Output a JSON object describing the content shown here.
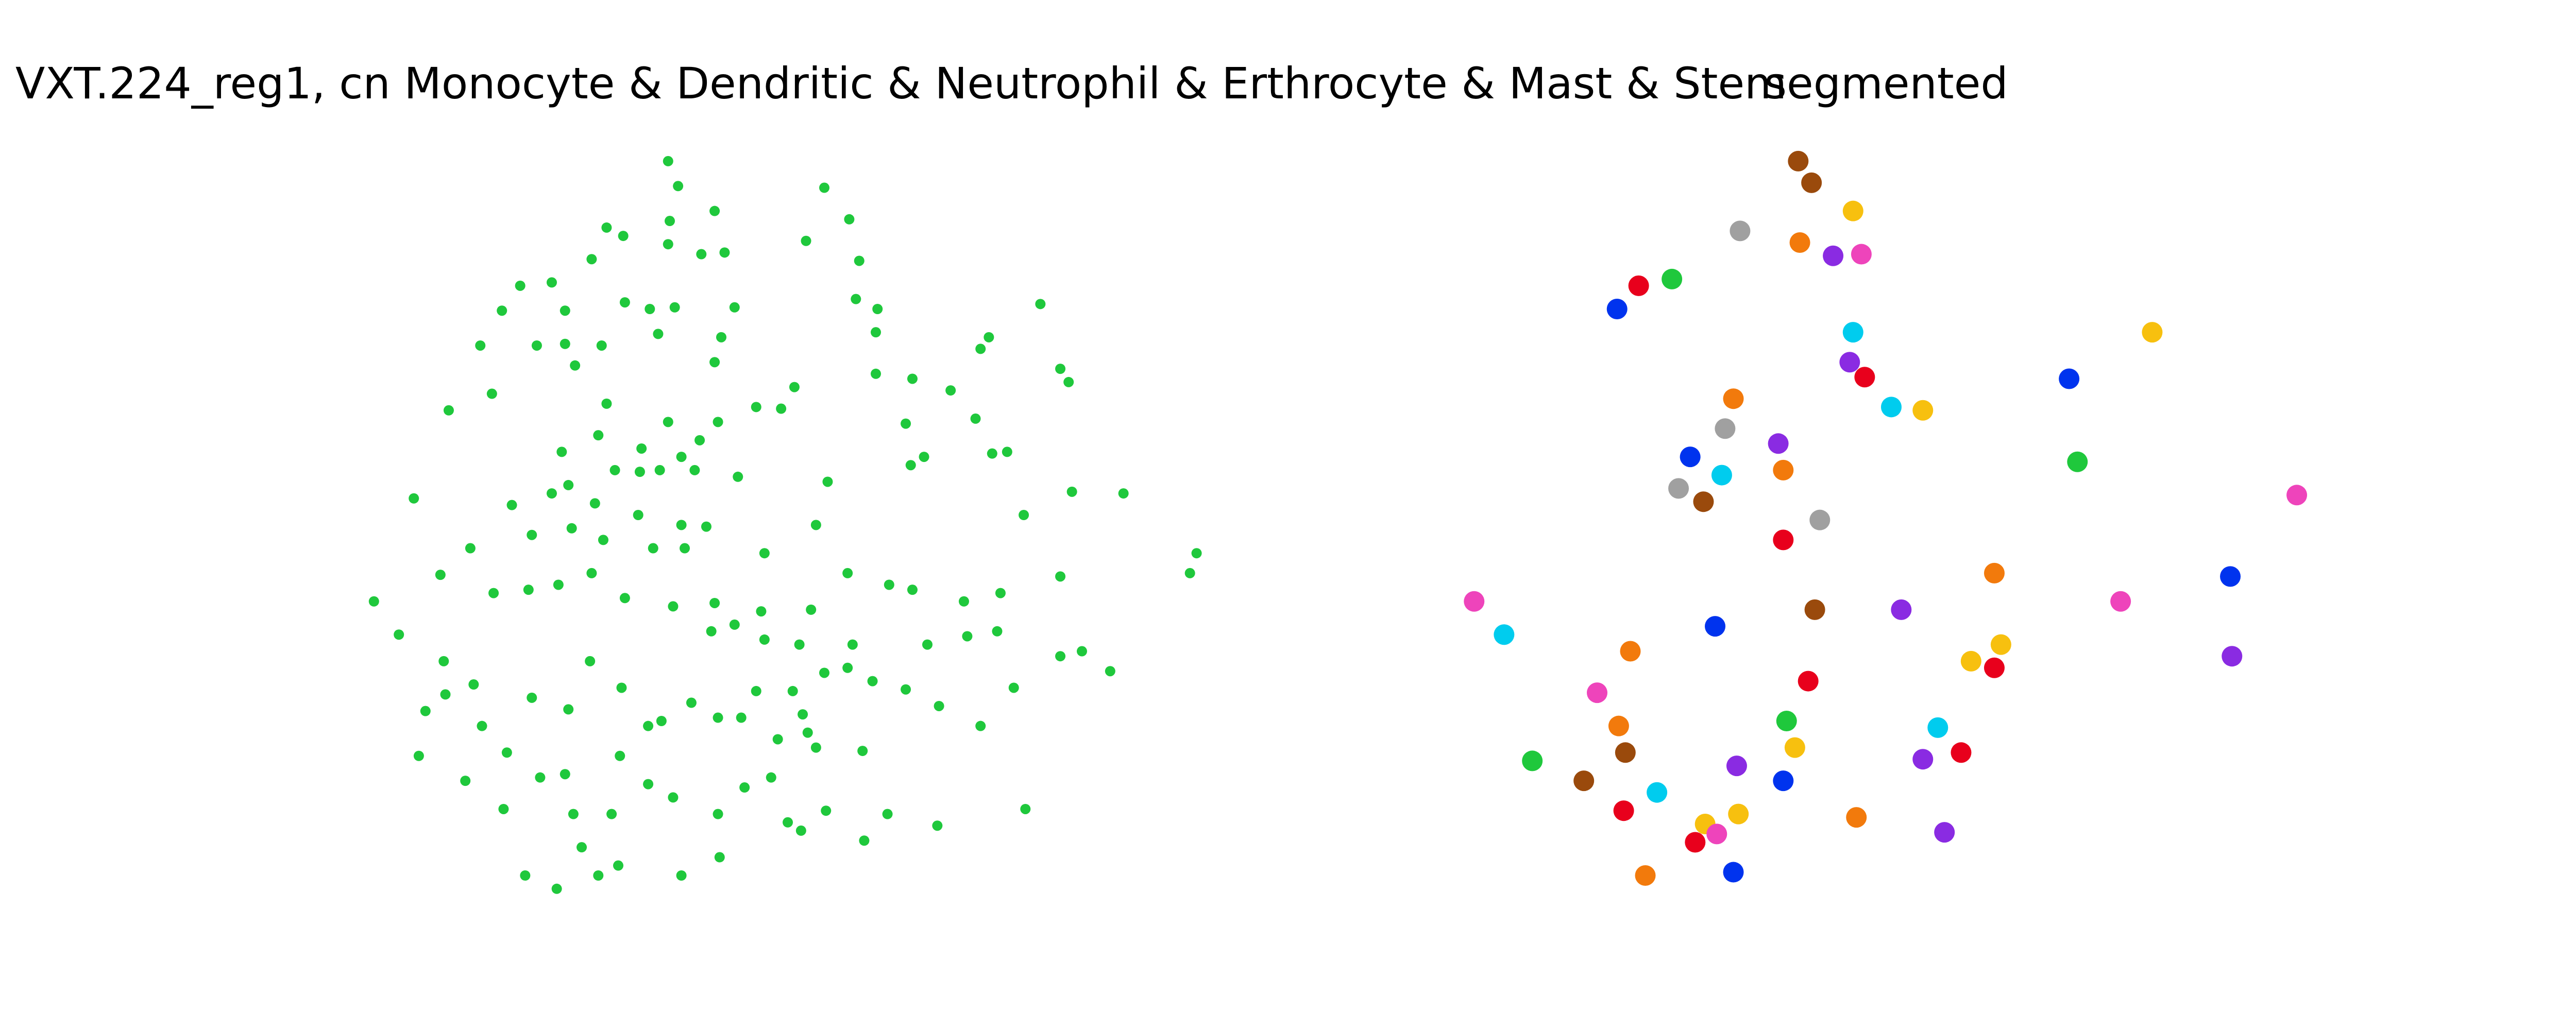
{
  "chart_data": [
    {
      "type": "scatter",
      "title": "VXT.224_reg1, cn Monocyte & Dendritic & Neutrophil & Erthrocyte & Mast & Stem",
      "xlim": [
        200,
        740
      ],
      "ylim": [
        560,
        80
      ],
      "series": [
        {
          "color": "#1fc83c",
          "x": [
            402,
            408,
            496,
            365,
            375,
            403,
            430,
            511,
            356,
            402,
            422,
            436,
            485,
            517,
            313,
            332,
            340,
            302,
            289,
            296,
            323,
            340,
            346,
            362,
            376,
            391,
            406,
            396,
            434,
            430,
            442,
            515,
            528,
            527,
            595,
            590,
            626,
            638,
            643,
            549,
            572,
            527,
            478,
            470,
            455,
            432,
            421,
            402,
            386,
            365,
            360,
            338,
            342,
            332,
            370,
            385,
            397,
            410,
            418,
            444,
            498,
            545,
            548,
            556,
            587,
            597,
            606,
            616,
            645,
            676,
            720,
            716,
            249,
            270,
            265,
            283,
            308,
            320,
            344,
            358,
            363,
            384,
            410,
            412,
            425,
            393,
            460,
            491,
            510,
            535,
            549,
            580,
            602,
            638,
            225,
            240,
            267,
            297,
            318,
            336,
            356,
            376,
            405,
            430,
            428,
            442,
            458,
            460,
            488,
            513,
            510,
            496,
            481,
            525,
            545,
            558,
            582,
            600,
            638,
            651,
            668,
            610,
            590,
            565,
            256,
            252,
            268,
            285,
            290,
            305,
            320,
            342,
            355,
            374,
            390,
            398,
            416,
            432,
            446,
            455,
            468,
            486,
            491,
            519,
            483,
            477,
            280,
            303,
            325,
            340,
            345,
            368,
            373,
            390,
            405,
            432,
            448,
            464,
            482,
            497,
            520,
            534,
            564,
            617,
            316,
            335,
            360,
            372,
            350,
            410,
            433,
            474
          ],
          "y": [
            97,
            112,
            113,
            137,
            142,
            133,
            127,
            132,
            156,
            147,
            153,
            152,
            145,
            157,
            172,
            170,
            187,
            187,
            208,
            237,
            208,
            207,
            220,
            208,
            182,
            186,
            185,
            201,
            203,
            218,
            185,
            180,
            186,
            200,
            203,
            210,
            183,
            222,
            230,
            228,
            235,
            225,
            233,
            246,
            245,
            254,
            265,
            254,
            270,
            243,
            262,
            272,
            292,
            297,
            283,
            284,
            283,
            275,
            283,
            287,
            290,
            255,
            280,
            275,
            252,
            273,
            272,
            310,
            296,
            297,
            333,
            345,
            300,
            247,
            346,
            330,
            304,
            322,
            318,
            303,
            325,
            310,
            316,
            330,
            317,
            330,
            333,
            316,
            345,
            352,
            355,
            362,
            357,
            347,
            362,
            382,
            398,
            357,
            355,
            352,
            345,
            360,
            365,
            363,
            380,
            376,
            368,
            385,
            367,
            388,
            402,
            405,
            388,
            410,
            415,
            388,
            383,
            380,
            395,
            392,
            404,
            414,
            437,
            425,
            428,
            455,
            418,
            412,
            437,
            453,
            420,
            427,
            398,
            414,
            437,
            434,
            423,
            432,
            432,
            416,
            445,
            441,
            450,
            452,
            430,
            416,
            470,
            487,
            468,
            466,
            490,
            490,
            455,
            472,
            480,
            490,
            474,
            468,
            500,
            488,
            506,
            490,
            497,
            487,
            527,
            535,
            527,
            521,
            510,
            527,
            516,
            495
          ]
        }
      ]
    },
    {
      "type": "scatter",
      "title": "segmented",
      "xlim": [
        865,
        1405
      ],
      "ylim": [
        560,
        80
      ],
      "series": [
        {
          "color": "#9a4a0c",
          "x": [
            1090,
            1082,
            1025,
            978,
            953,
            1092
          ],
          "y": [
            110,
            97,
            302,
            453,
            470,
            367
          ]
        },
        {
          "color": "#f27a0c",
          "x": [
            1083,
            1043,
            1073,
            1200,
            981,
            974,
            1117,
            990
          ],
          "y": [
            146,
            240,
            283,
            345,
            392,
            437,
            492,
            527
          ]
        },
        {
          "color": "#f7c00f",
          "x": [
            1115,
            1295,
            1157,
            1204,
            1186,
            1080,
            1046,
            1026
          ],
          "y": [
            127,
            200,
            247,
            388,
            398,
            450,
            490,
            496
          ]
        },
        {
          "color": "#a0a0a0",
          "x": [
            1047,
            1038,
            1010,
            1095
          ],
          "y": [
            139,
            258,
            294,
            313
          ]
        },
        {
          "color": "#8a2be2",
          "x": [
            1103,
            1113,
            1070,
            1144,
            1343,
            1045,
            1157,
            1170
          ],
          "y": [
            154,
            218,
            267,
            367,
            395,
            461,
            457,
            501
          ]
        },
        {
          "color": "#ee44bb",
          "x": [
            1120,
            1382,
            887,
            1276,
            961,
            1033
          ],
          "y": [
            153,
            298,
            362,
            362,
            417,
            502
          ]
        },
        {
          "color": "#e8001c",
          "x": [
            986,
            1122,
            1073,
            1088,
            1200,
            1180,
            977,
            1020
          ],
          "y": [
            172,
            227,
            325,
            410,
            402,
            453,
            488,
            507
          ]
        },
        {
          "color": "#0033ee",
          "x": [
            973,
            1017,
            1245,
            1032,
            1342,
            1073,
            1043
          ],
          "y": [
            186,
            275,
            228,
            377,
            347,
            470,
            525
          ]
        },
        {
          "color": "#1fc83c",
          "x": [
            1006,
            1250,
            922,
            1075
          ],
          "y": [
            168,
            278,
            458,
            434
          ]
        },
        {
          "color": "#00ccee",
          "x": [
            1115,
            1138,
            1036,
            905,
            997,
            1166
          ],
          "y": [
            200,
            245,
            286,
            382,
            477,
            438
          ]
        }
      ]
    }
  ]
}
